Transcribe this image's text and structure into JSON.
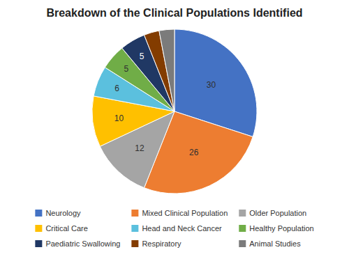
{
  "chart_data": {
    "type": "pie",
    "title": "Breakdown of the Clinical Populations Identified",
    "categories": [
      "Neurology",
      "Mixed Clinical Population",
      "Older Population",
      "Critical Care",
      "Head and Neck Cancer",
      "Healthy Population",
      "Paediatric Swallowing",
      "Respiratory",
      "Animal Studies"
    ],
    "values": [
      30,
      26,
      12,
      10,
      6,
      5,
      5,
      3,
      3
    ],
    "value_labels": [
      "30",
      "26",
      "12",
      "10",
      "6",
      "5",
      "5",
      null,
      null
    ],
    "colors": [
      "#4472C4",
      "#ED7D31",
      "#A5A5A5",
      "#FFC000",
      "#5BC0DE",
      "#70AD47",
      "#203864",
      "#833C00",
      "#7B7B7B"
    ],
    "data_labels": true,
    "legend": "bottom"
  }
}
